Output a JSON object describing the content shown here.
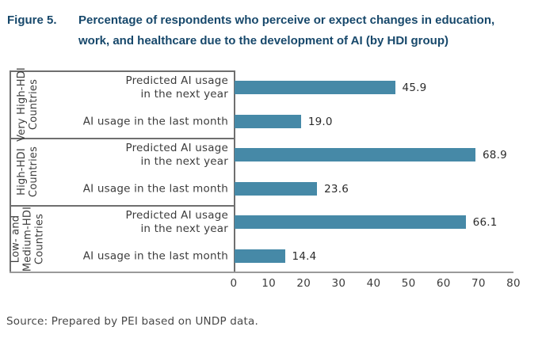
{
  "header": {
    "figure_label": "Figure 5.",
    "title_lines": [
      "Percentage of respondents who perceive or expect changes in education,",
      "work, and healthcare due to the development of AI (by HDI group)"
    ]
  },
  "chart_data": {
    "type": "bar",
    "orientation": "horizontal",
    "title": "Percentage of respondents who perceive or expect changes in education, work, and healthcare due to the development of AI (by HDI group)",
    "categories": [
      "Predicted AI usage\nin the next year",
      "AI usage in the last month"
    ],
    "groups": [
      {
        "label": "Very High-HDI\nCountries",
        "values": [
          45.9,
          19.0
        ]
      },
      {
        "label": "High-HDI\nCountries",
        "values": [
          68.9,
          23.6
        ]
      },
      {
        "label": "Low- and\nMedium-HDI\nCountries",
        "values": [
          66.1,
          14.4
        ]
      }
    ],
    "value_labels": [
      "45.9",
      "19.0",
      "68.9",
      "23.6",
      "66.1",
      "14.4"
    ],
    "xlim": [
      0,
      80
    ],
    "xticks": [
      0,
      10,
      20,
      30,
      40,
      50,
      60,
      70,
      80
    ],
    "grid": false,
    "legend": false,
    "colors": {
      "bar": "#4689a7",
      "title": "#17486b",
      "frame": "#6f6f6f",
      "axis": "#9a9a9a",
      "text": "#3c3c3c"
    }
  },
  "footer": {
    "source": "Source: Prepared by PEI based on UNDP data."
  }
}
